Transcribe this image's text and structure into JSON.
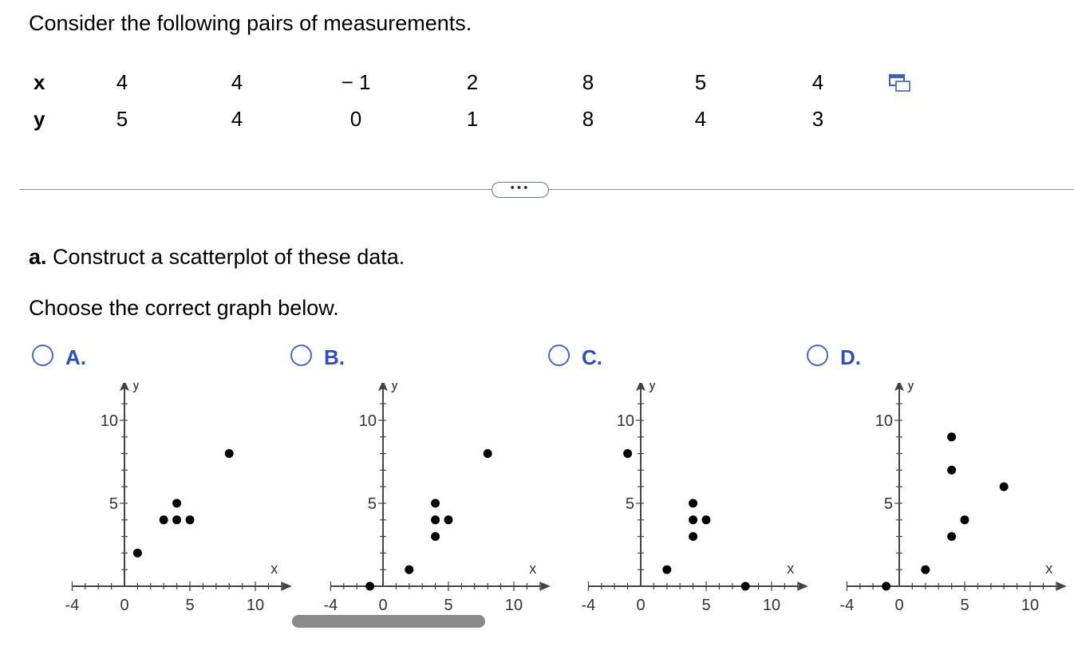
{
  "intro": "Consider the following pairs of measurements.",
  "pairs": {
    "x_label": "x",
    "y_label": "y",
    "x": [
      "4",
      "4",
      "− 1",
      "2",
      "8",
      "5",
      "4"
    ],
    "y": [
      "5",
      "4",
      "0",
      "1",
      "8",
      "4",
      "3"
    ]
  },
  "copy_icon": "copy-data-icon",
  "more_button": "•••",
  "part_a": {
    "letter": "a.",
    "text": " Construct a scatterplot of these data."
  },
  "choose": "Choose the correct graph below.",
  "colors": {
    "accent": "#2e4fb8",
    "radio_border": "#4a67c8",
    "axis": "#444444"
  },
  "chart_data": [
    {
      "type": "scatter",
      "option": "A.",
      "xlabel": "x",
      "ylabel": "y",
      "xlim": [
        -4,
        12
      ],
      "ylim": [
        0,
        11
      ],
      "xticks": [
        -4,
        0,
        5,
        10
      ],
      "yticks": [
        5,
        10
      ],
      "points": [
        [
          1,
          2
        ],
        [
          3,
          4
        ],
        [
          4,
          4
        ],
        [
          5,
          4
        ],
        [
          4,
          5
        ],
        [
          8,
          8
        ]
      ]
    },
    {
      "type": "scatter",
      "option": "B.",
      "xlabel": "x",
      "ylabel": "y",
      "xlim": [
        -4,
        12
      ],
      "ylim": [
        0,
        11
      ],
      "xticks": [
        -4,
        0,
        5,
        10
      ],
      "yticks": [
        5,
        10
      ],
      "points": [
        [
          -1,
          0
        ],
        [
          2,
          1
        ],
        [
          4,
          3
        ],
        [
          4,
          4
        ],
        [
          5,
          4
        ],
        [
          4,
          5
        ],
        [
          8,
          8
        ]
      ]
    },
    {
      "type": "scatter",
      "option": "C.",
      "xlabel": "x",
      "ylabel": "y",
      "xlim": [
        -4,
        12
      ],
      "ylim": [
        0,
        11
      ],
      "xticks": [
        -4,
        0,
        5,
        10
      ],
      "yticks": [
        5,
        10
      ],
      "points": [
        [
          -1,
          8
        ],
        [
          2,
          1
        ],
        [
          4,
          3
        ],
        [
          4,
          4
        ],
        [
          5,
          4
        ],
        [
          4,
          5
        ],
        [
          8,
          0
        ]
      ]
    },
    {
      "type": "scatter",
      "option": "D.",
      "xlabel": "x",
      "ylabel": "y",
      "xlim": [
        -4,
        12
      ],
      "ylim": [
        0,
        11
      ],
      "xticks": [
        -4,
        0,
        5,
        10
      ],
      "yticks": [
        5,
        10
      ],
      "points": [
        [
          -1,
          0
        ],
        [
          2,
          1
        ],
        [
          4,
          3
        ],
        [
          5,
          4
        ],
        [
          4,
          7
        ],
        [
          8,
          6
        ],
        [
          4,
          9
        ]
      ]
    }
  ]
}
